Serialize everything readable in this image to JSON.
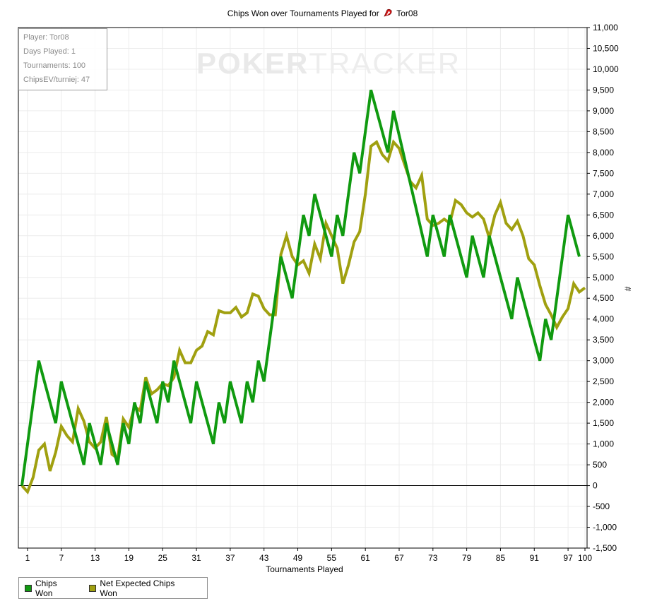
{
  "title": {
    "prefix": "Chips Won over Tournaments Played for",
    "player": "Tor08"
  },
  "stats": [
    "Player: Tor08",
    "Days Played: 1",
    "Tournaments: 100",
    "ChipsEV/turniej: 47"
  ],
  "watermark": {
    "bold": "POKER",
    "light": "TRACKER"
  },
  "chart_data": {
    "type": "line",
    "xlabel": "Tournaments Played",
    "ylabel": "#",
    "xlim": [
      0,
      100
    ],
    "ylim": [
      -1500,
      11000
    ],
    "x_ticks": [
      1,
      7,
      13,
      19,
      25,
      31,
      37,
      43,
      49,
      55,
      61,
      67,
      73,
      79,
      85,
      91,
      97,
      100
    ],
    "y_ticks": [
      -1500,
      -1000,
      -500,
      0,
      500,
      1000,
      1500,
      2000,
      2500,
      3000,
      3500,
      4000,
      4500,
      5000,
      5500,
      6000,
      6500,
      7000,
      7500,
      8000,
      8500,
      9000,
      9500,
      10000,
      10500,
      11000
    ],
    "y_tick_labels": [
      "-1,500",
      "-1,000",
      "-500",
      "0",
      "500",
      "1,000",
      "1,500",
      "2,000",
      "2,500",
      "3,000",
      "3,500",
      "4,000",
      "4,500",
      "5,000",
      "5,500",
      "6,000",
      "6,500",
      "7,000",
      "7,500",
      "8,000",
      "8,500",
      "9,000",
      "9,500",
      "10,000",
      "10,500",
      "11,000"
    ],
    "grid": true,
    "legend_position": "bottom-left",
    "series": [
      {
        "name": "Chips Won",
        "color": "#109a10",
        "points": [
          [
            0,
            0
          ],
          [
            3,
            3000
          ],
          [
            6,
            1500
          ],
          [
            7,
            2500
          ],
          [
            11,
            500
          ],
          [
            12,
            1500
          ],
          [
            14,
            500
          ],
          [
            15,
            1500
          ],
          [
            17,
            500
          ],
          [
            18,
            1500
          ],
          [
            19,
            1000
          ],
          [
            20,
            2000
          ],
          [
            21,
            1500
          ],
          [
            22,
            2500
          ],
          [
            24,
            1500
          ],
          [
            25,
            2500
          ],
          [
            26,
            2000
          ],
          [
            27,
            3000
          ],
          [
            30,
            1500
          ],
          [
            31,
            2500
          ],
          [
            34,
            1000
          ],
          [
            35,
            2000
          ],
          [
            36,
            1500
          ],
          [
            37,
            2500
          ],
          [
            39,
            1500
          ],
          [
            40,
            2500
          ],
          [
            41,
            2000
          ],
          [
            42,
            3000
          ],
          [
            43,
            2500
          ],
          [
            46,
            5500
          ],
          [
            48,
            4500
          ],
          [
            50,
            6500
          ],
          [
            51,
            6000
          ],
          [
            52,
            7000
          ],
          [
            55,
            5500
          ],
          [
            56,
            6500
          ],
          [
            57,
            6000
          ],
          [
            59,
            8000
          ],
          [
            60,
            7500
          ],
          [
            62,
            9500
          ],
          [
            65,
            8000
          ],
          [
            66,
            9000
          ],
          [
            72,
            5500
          ],
          [
            73,
            6500
          ],
          [
            75,
            5500
          ],
          [
            76,
            6500
          ],
          [
            79,
            5000
          ],
          [
            80,
            6000
          ],
          [
            82,
            5000
          ],
          [
            83,
            6000
          ],
          [
            87,
            4000
          ],
          [
            88,
            5000
          ],
          [
            92,
            3000
          ],
          [
            93,
            4000
          ],
          [
            94,
            3500
          ],
          [
            97,
            6500
          ],
          [
            99,
            5500
          ]
        ]
      },
      {
        "name": "Net Expected Chips Won",
        "color": "#a0a010",
        "points": [
          [
            0,
            0
          ],
          [
            1,
            -150
          ],
          [
            2,
            200
          ],
          [
            3,
            850
          ],
          [
            4,
            1000
          ],
          [
            5,
            350
          ],
          [
            6,
            800
          ],
          [
            7,
            1420
          ],
          [
            8,
            1200
          ],
          [
            9,
            1050
          ],
          [
            10,
            1850
          ],
          [
            11,
            1550
          ],
          [
            12,
            1050
          ],
          [
            13,
            900
          ],
          [
            14,
            1050
          ],
          [
            15,
            1650
          ],
          [
            16,
            750
          ],
          [
            17,
            650
          ],
          [
            18,
            1600
          ],
          [
            19,
            1400
          ],
          [
            20,
            1900
          ],
          [
            21,
            1800
          ],
          [
            22,
            2600
          ],
          [
            23,
            2200
          ],
          [
            24,
            2300
          ],
          [
            25,
            2450
          ],
          [
            26,
            2400
          ],
          [
            27,
            2600
          ],
          [
            28,
            3250
          ],
          [
            29,
            2950
          ],
          [
            30,
            2950
          ],
          [
            31,
            3250
          ],
          [
            32,
            3350
          ],
          [
            33,
            3700
          ],
          [
            34,
            3620
          ],
          [
            35,
            4200
          ],
          [
            36,
            4150
          ],
          [
            37,
            4150
          ],
          [
            38,
            4280
          ],
          [
            39,
            4050
          ],
          [
            40,
            4150
          ],
          [
            41,
            4600
          ],
          [
            42,
            4550
          ],
          [
            43,
            4250
          ],
          [
            44,
            4100
          ],
          [
            45,
            4100
          ],
          [
            46,
            5550
          ],
          [
            47,
            6000
          ],
          [
            48,
            5500
          ],
          [
            49,
            5300
          ],
          [
            50,
            5400
          ],
          [
            51,
            5100
          ],
          [
            52,
            5800
          ],
          [
            53,
            5450
          ],
          [
            54,
            6300
          ],
          [
            55,
            6000
          ],
          [
            56,
            5700
          ],
          [
            57,
            4850
          ],
          [
            58,
            5300
          ],
          [
            59,
            5850
          ],
          [
            60,
            6100
          ],
          [
            61,
            7000
          ],
          [
            62,
            8150
          ],
          [
            63,
            8250
          ],
          [
            64,
            7950
          ],
          [
            65,
            7800
          ],
          [
            66,
            8250
          ],
          [
            67,
            8100
          ],
          [
            68,
            7700
          ],
          [
            69,
            7300
          ],
          [
            70,
            7150
          ],
          [
            71,
            7450
          ],
          [
            72,
            6400
          ],
          [
            73,
            6250
          ],
          [
            74,
            6300
          ],
          [
            75,
            6400
          ],
          [
            76,
            6300
          ],
          [
            77,
            6850
          ],
          [
            78,
            6750
          ],
          [
            79,
            6550
          ],
          [
            80,
            6450
          ],
          [
            81,
            6550
          ],
          [
            82,
            6400
          ],
          [
            83,
            5950
          ],
          [
            84,
            6500
          ],
          [
            85,
            6800
          ],
          [
            86,
            6300
          ],
          [
            87,
            6150
          ],
          [
            88,
            6350
          ],
          [
            89,
            6000
          ],
          [
            90,
            5450
          ],
          [
            91,
            5300
          ],
          [
            92,
            4800
          ],
          [
            93,
            4350
          ],
          [
            94,
            4100
          ],
          [
            95,
            3800
          ],
          [
            96,
            4050
          ],
          [
            97,
            4250
          ],
          [
            98,
            4850
          ],
          [
            99,
            4650
          ],
          [
            100,
            4750
          ]
        ]
      }
    ]
  }
}
